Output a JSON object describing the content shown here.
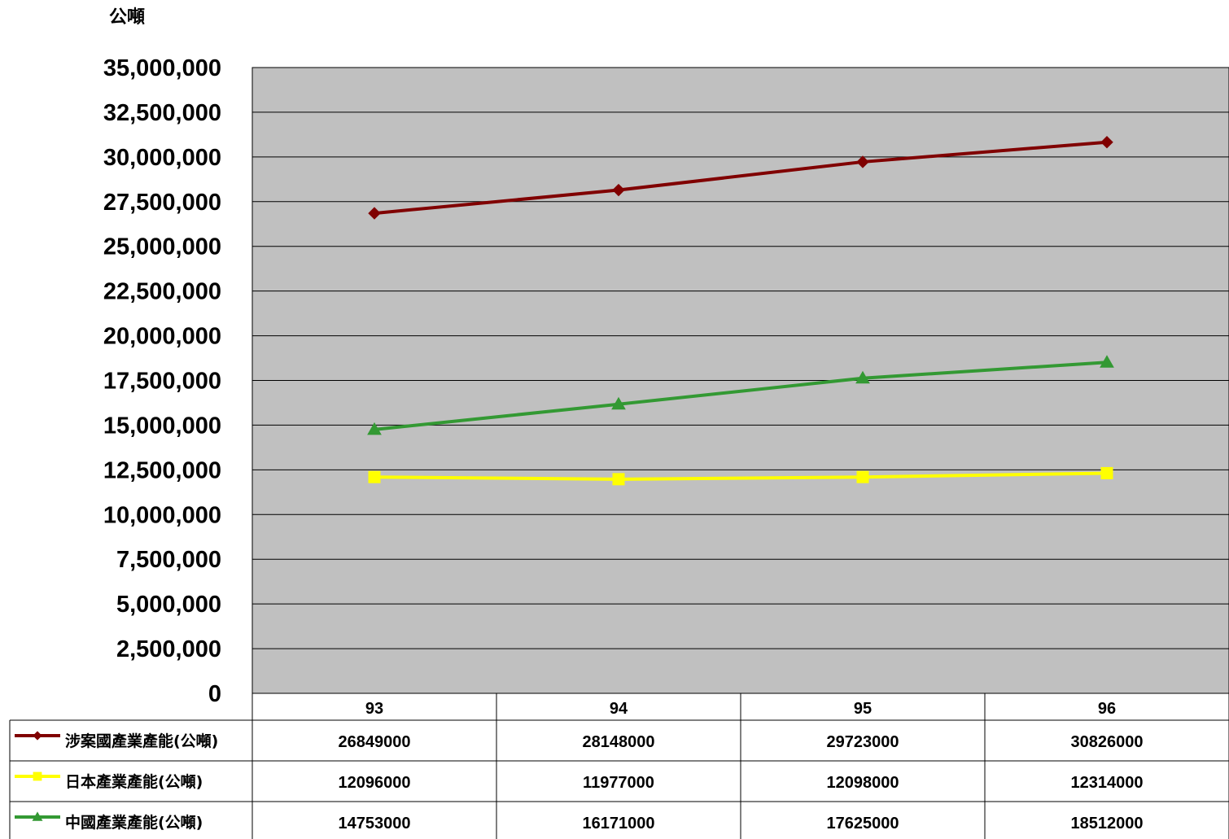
{
  "chart_data": {
    "type": "line",
    "unit_label": "公噸",
    "categories": [
      "93",
      "94",
      "95",
      "96"
    ],
    "ylim": [
      0,
      35000000
    ],
    "ytick_step": 2500000,
    "yticks": [
      "0",
      "2,500,000",
      "5,000,000",
      "7,500,000",
      "10,000,000",
      "12,500,000",
      "15,000,000",
      "17,500,000",
      "20,000,000",
      "22,500,000",
      "25,000,000",
      "27,500,000",
      "30,000,000",
      "32,500,000",
      "35,000,000"
    ],
    "grid": true,
    "legend": "data-table",
    "series": [
      {
        "name": "涉案國產業產能(公噸)",
        "values": [
          26849000,
          28148000,
          29723000,
          30826000
        ],
        "value_labels": [
          "26849000",
          "28148000",
          "29723000",
          "30826000"
        ],
        "color": "#800000",
        "marker": "diamond"
      },
      {
        "name": "日本產業產能(公噸)",
        "values": [
          12096000,
          11977000,
          12098000,
          12314000
        ],
        "value_labels": [
          "12096000",
          "11977000",
          "12098000",
          "12314000"
        ],
        "color": "#ffff00",
        "marker": "square"
      },
      {
        "name": "中國產業產能(公噸)",
        "values": [
          14753000,
          16171000,
          17625000,
          18512000
        ],
        "value_labels": [
          "14753000",
          "16171000",
          "17625000",
          "18512000"
        ],
        "color": "#339933",
        "marker": "triangle"
      }
    ],
    "plot_background": "#c0c0c0"
  }
}
